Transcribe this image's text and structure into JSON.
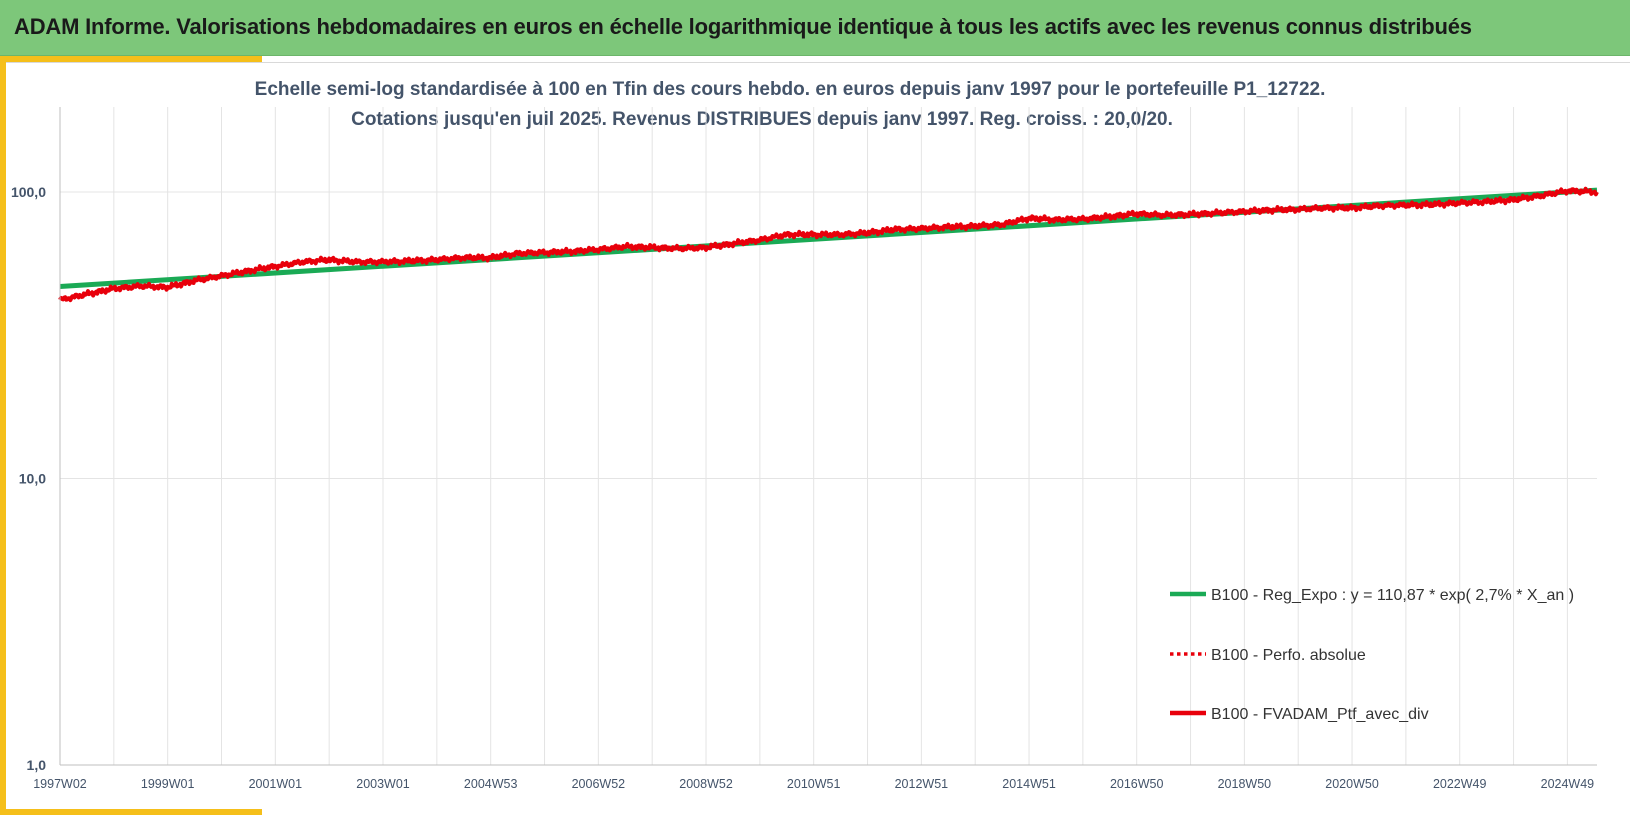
{
  "header": {
    "title": "ADAM Informe. Valorisations hebdomadaires en euros en échelle logarithmique identique à tous les actifs avec les revenus connus distribués"
  },
  "colors": {
    "title_bar": "#7dc77a",
    "accent": "#f5bf1a",
    "regression": "#1aaa55",
    "portfolio": "#e8000b",
    "text": "#44546a"
  },
  "chart_data": {
    "type": "line",
    "title": "Echelle semi-log standardisée à 100 en Tfin des cours hebdo.  en euros depuis janv 1997 pour le portefeuille P1_12722.",
    "subtitle": "Cotations jusqu'en juil 2025. Revenus DISTRIBUES depuis janv 1997. Reg. croiss. : 20,0/20.",
    "y_scale": "log",
    "ylim": [
      1,
      200
    ],
    "y_ticks": [
      {
        "value": 1,
        "label": "1,0"
      },
      {
        "value": 10,
        "label": "10,0"
      },
      {
        "value": 100,
        "label": "100,0"
      }
    ],
    "xlim": [
      1997.0,
      2025.55
    ],
    "x_ticks": [
      {
        "value": 1997.0,
        "label": "1997W02"
      },
      {
        "value": 1999.0,
        "label": "1999W01"
      },
      {
        "value": 2001.0,
        "label": "2001W01"
      },
      {
        "value": 2003.0,
        "label": "2003W01"
      },
      {
        "value": 2005.0,
        "label": "2004W53"
      },
      {
        "value": 2007.0,
        "label": "2006W52"
      },
      {
        "value": 2009.0,
        "label": "2008W52"
      },
      {
        "value": 2011.0,
        "label": "2010W51"
      },
      {
        "value": 2013.0,
        "label": "2012W51"
      },
      {
        "value": 2015.0,
        "label": "2014W51"
      },
      {
        "value": 2017.0,
        "label": "2016W50"
      },
      {
        "value": 2019.0,
        "label": "2018W50"
      },
      {
        "value": 2021.0,
        "label": "2020W50"
      },
      {
        "value": 2023.0,
        "label": "2022W49"
      },
      {
        "value": 2025.0,
        "label": "2024W49"
      }
    ],
    "grid": true,
    "legend_position": "bottom-right",
    "series": [
      {
        "name": "B100 - Reg_Expo : y = 110,87 * exp( 2,7% *  X_an )",
        "color": "#1aaa55",
        "style": "solid",
        "x": [
          1997.0,
          2025.55
        ],
        "values": [
          46.8,
          101.5
        ]
      },
      {
        "name": "B100 - Perfo. absolue",
        "color": "#e8000b",
        "style": "dotted",
        "x": [],
        "values": []
      },
      {
        "name": "B100 - FVADAM_Ptf_avec_div",
        "color": "#e8000b",
        "style": "solid",
        "x": [
          1997.0,
          1997.5,
          1998.0,
          1998.5,
          1999.0,
          1999.5,
          2000.0,
          2000.5,
          2001.0,
          2001.5,
          2002.0,
          2002.5,
          2003.0,
          2003.5,
          2004.0,
          2004.5,
          2005.0,
          2005.5,
          2006.0,
          2006.5,
          2007.0,
          2007.5,
          2008.0,
          2008.5,
          2009.0,
          2009.5,
          2010.0,
          2010.5,
          2011.0,
          2011.5,
          2012.0,
          2012.5,
          2013.0,
          2013.5,
          2014.0,
          2014.5,
          2015.0,
          2015.5,
          2016.0,
          2016.5,
          2017.0,
          2017.5,
          2018.0,
          2018.5,
          2019.0,
          2019.5,
          2020.0,
          2020.5,
          2021.0,
          2021.5,
          2022.0,
          2022.5,
          2023.0,
          2023.5,
          2024.0,
          2024.5,
          2025.0,
          2025.55
        ],
        "values": [
          42,
          44,
          46,
          47,
          46.5,
          49,
          51,
          53,
          55,
          57,
          58,
          57,
          57,
          57.5,
          58,
          59,
          59,
          61,
          61.5,
          62,
          63,
          64.5,
          64,
          63.5,
          64,
          66,
          68,
          71,
          71,
          71,
          72,
          74,
          74.5,
          75.5,
          76,
          77,
          81,
          80,
          80.5,
          82,
          84,
          83,
          83.5,
          84.5,
          85.5,
          86.5,
          87,
          88,
          88,
          89.5,
          90,
          90.5,
          91.5,
          92.5,
          94,
          97,
          101,
          100
        ]
      }
    ]
  }
}
